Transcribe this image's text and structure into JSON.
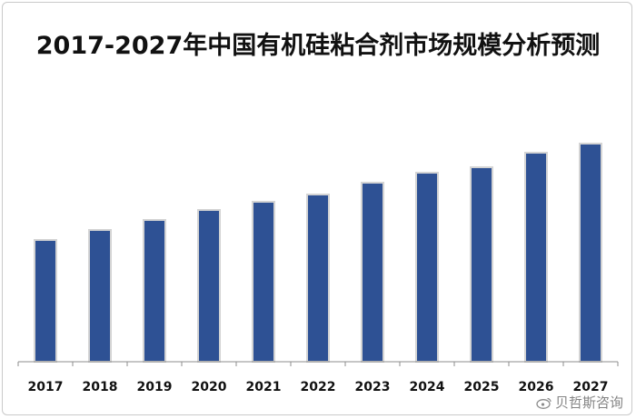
{
  "chart_data": {
    "type": "bar",
    "title": "2017-2027年中国有机硅粘合剂市场规模分析预测",
    "xlabel": "",
    "ylabel": "",
    "categories": [
      "2017",
      "2018",
      "2019",
      "2020",
      "2021",
      "2022",
      "2023",
      "2024",
      "2025",
      "2026",
      "2027"
    ],
    "values": [
      134,
      145,
      156,
      167,
      176,
      184,
      197,
      208,
      214,
      230,
      240
    ],
    "ylim": [
      0,
      270
    ],
    "bar_color": "#2E5194",
    "bar_edge_color": "#d4d4d4",
    "axis_color": "#8c8c8c",
    "grid": false,
    "legend": "none"
  },
  "watermark": {
    "text": "贝哲斯咨询",
    "icon": "weibo-icon"
  }
}
